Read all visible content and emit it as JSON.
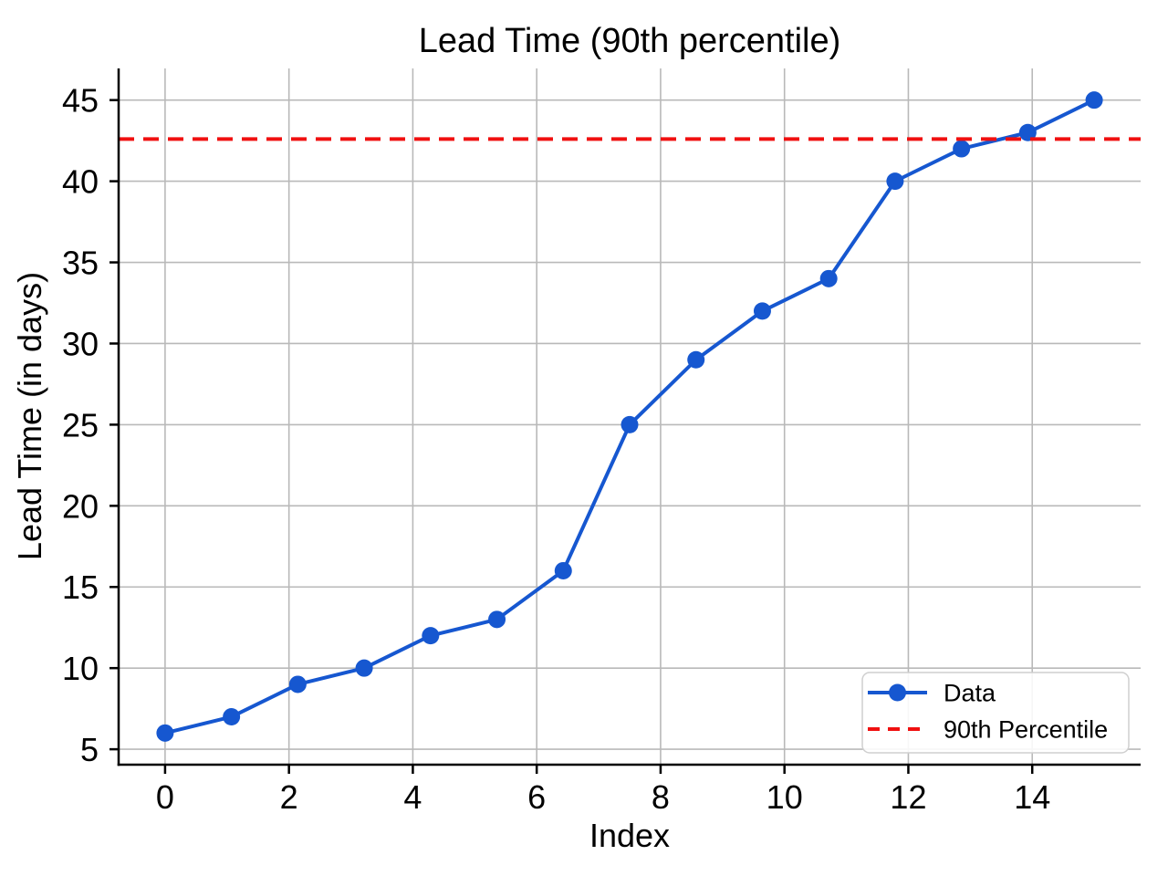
{
  "figure": {
    "background": "#ffffff"
  },
  "chart_data": {
    "type": "line",
    "title": "Lead Time (90th percentile)",
    "xlabel": "Index",
    "ylabel": "Lead Time (in days)",
    "x": [
      0,
      1.0714,
      2.1429,
      3.2143,
      4.2857,
      5.3571,
      6.4286,
      7.5,
      8.5714,
      9.6429,
      10.7143,
      11.7857,
      12.8571,
      13.9286,
      15
    ],
    "y": [
      6,
      7,
      9,
      10,
      12,
      13,
      16,
      25,
      29,
      32,
      34,
      40,
      42,
      43,
      45
    ],
    "percentile_value": 42.6,
    "xticks": [
      0,
      2,
      4,
      6,
      8,
      10,
      12,
      14
    ],
    "yticks": [
      5,
      10,
      15,
      20,
      25,
      30,
      35,
      40,
      45
    ],
    "xlim": [
      -0.75,
      15.75
    ],
    "ylim": [
      4.05,
      46.95
    ],
    "grid": true,
    "legend": {
      "position": "lower right",
      "entries": [
        {
          "label": "Data",
          "style": "solid-marker",
          "color": "#1657d0"
        },
        {
          "label": "90th Percentile",
          "style": "dashed",
          "color": "#f01010"
        }
      ]
    },
    "colors": {
      "data_line": "#1657d0",
      "percentile_line": "#f01010",
      "grid": "#b9b9b9",
      "spine": "#000000",
      "text": "#000000"
    }
  }
}
